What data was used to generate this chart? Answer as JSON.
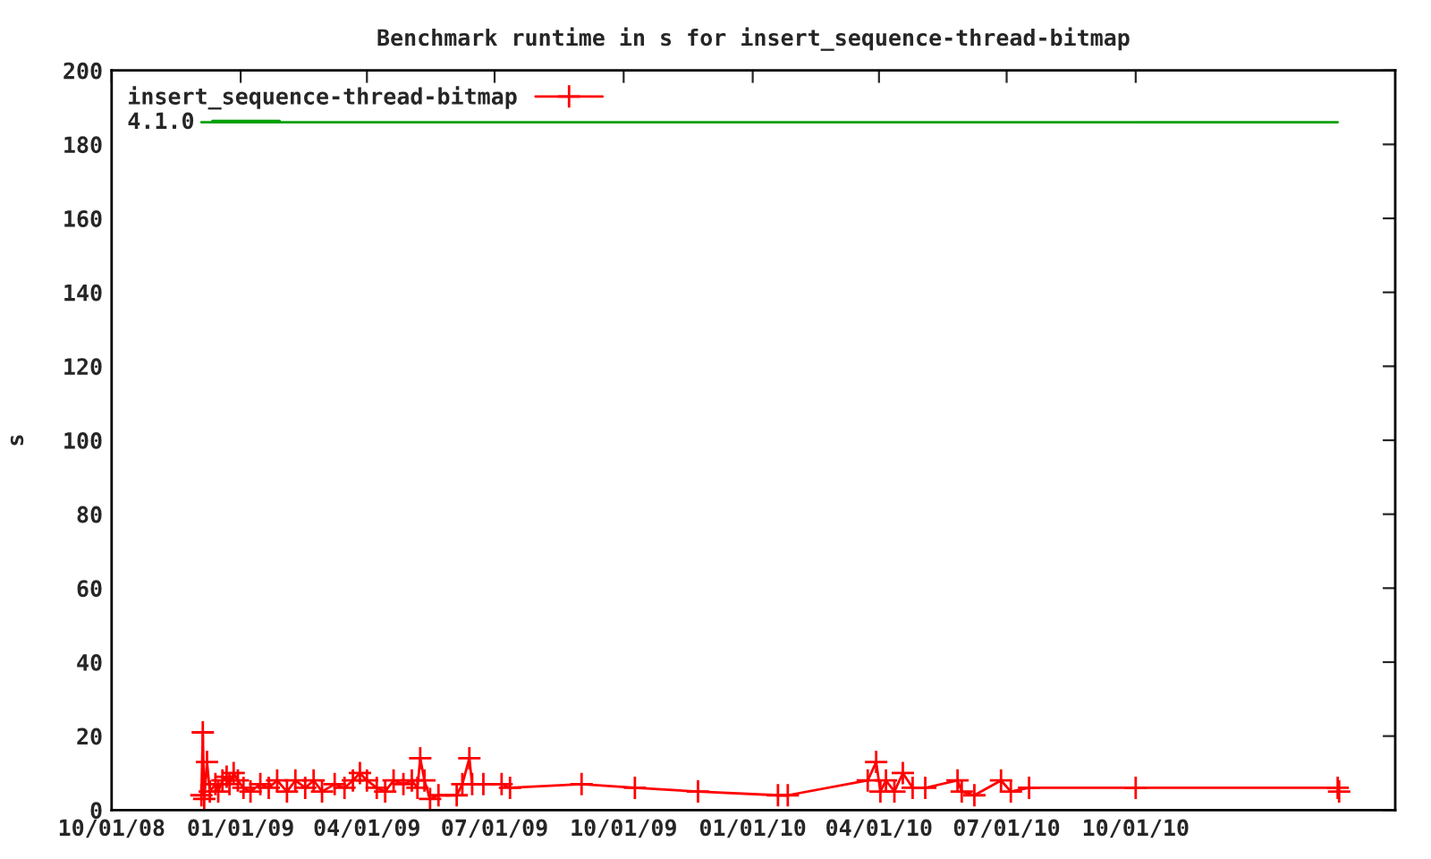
{
  "chart_data": {
    "type": "line",
    "title": "Benchmark runtime in s for insert_sequence-thread-bitmap",
    "ylabel": "s",
    "xlim": [
      "2008-10-01",
      "2011-04-04"
    ],
    "ylim": [
      0,
      200
    ],
    "xticks": [
      {
        "value": "2008-10-01",
        "label": "10/01/08"
      },
      {
        "value": "2009-01-01",
        "label": "01/01/09"
      },
      {
        "value": "2009-04-01",
        "label": "04/01/09"
      },
      {
        "value": "2009-07-01",
        "label": "07/01/09"
      },
      {
        "value": "2009-10-01",
        "label": "10/01/09"
      },
      {
        "value": "2010-01-01",
        "label": "01/01/10"
      },
      {
        "value": "2010-04-01",
        "label": "04/01/10"
      },
      {
        "value": "2010-07-01",
        "label": "07/01/10"
      },
      {
        "value": "2010-10-01",
        "label": "10/01/10"
      }
    ],
    "yticks": [
      0,
      20,
      40,
      60,
      80,
      100,
      120,
      140,
      160,
      180,
      200
    ],
    "grid": false,
    "legend": "top left",
    "series": [
      {
        "name": "insert_sequence-thread-bitmap",
        "color": "#ff0000",
        "marker": "cross",
        "x": [
          "2008-12-04",
          "2008-12-05",
          "2008-12-06",
          "2008-12-08",
          "2008-12-10",
          "2008-12-14",
          "2008-12-16",
          "2008-12-19",
          "2008-12-22",
          "2008-12-24",
          "2008-12-27",
          "2008-12-30",
          "2009-01-03",
          "2009-01-08",
          "2009-01-15",
          "2009-01-21",
          "2009-01-27",
          "2009-02-03",
          "2009-02-09",
          "2009-02-16",
          "2009-02-22",
          "2009-02-28",
          "2009-03-09",
          "2009-03-16",
          "2009-03-22",
          "2009-03-27",
          "2009-04-01",
          "2009-04-08",
          "2009-04-14",
          "2009-04-20",
          "2009-04-27",
          "2009-05-03",
          "2009-05-07",
          "2009-05-09",
          "2009-05-12",
          "2009-05-16",
          "2009-05-22",
          "2009-06-04",
          "2009-06-08",
          "2009-06-13",
          "2009-06-15",
          "2009-06-23",
          "2009-07-06",
          "2009-07-12",
          "2009-09-01",
          "2009-10-09",
          "2009-11-23",
          "2010-01-19",
          "2010-01-26",
          "2010-03-24",
          "2010-03-30",
          "2010-04-02",
          "2010-04-06",
          "2010-04-12",
          "2010-04-18",
          "2010-04-25",
          "2010-05-04",
          "2010-05-27",
          "2010-05-30",
          "2010-06-08",
          "2010-06-27",
          "2010-07-04",
          "2010-07-17",
          "2010-10-01",
          "2011-02-22",
          "2011-02-23"
        ],
        "values": [
          4,
          21,
          3,
          13,
          5,
          7,
          5,
          8,
          9,
          7,
          10,
          8,
          6,
          5,
          7,
          6,
          8,
          5,
          8,
          6,
          8,
          5,
          7,
          6,
          8,
          10,
          8,
          6,
          5,
          8,
          7,
          8,
          6,
          14,
          8,
          3,
          4,
          4,
          7,
          14,
          7,
          7,
          7,
          6,
          7,
          6,
          5,
          4,
          4,
          8,
          13,
          5,
          8,
          5,
          10,
          6,
          6,
          8,
          5,
          4,
          8,
          5,
          6,
          6,
          6,
          5
        ]
      },
      {
        "name": "4.1.0",
        "color": "#00a000",
        "marker": "none",
        "x": [
          "2008-12-04",
          "2011-02-22"
        ],
        "values": [
          186,
          186
        ]
      }
    ]
  }
}
